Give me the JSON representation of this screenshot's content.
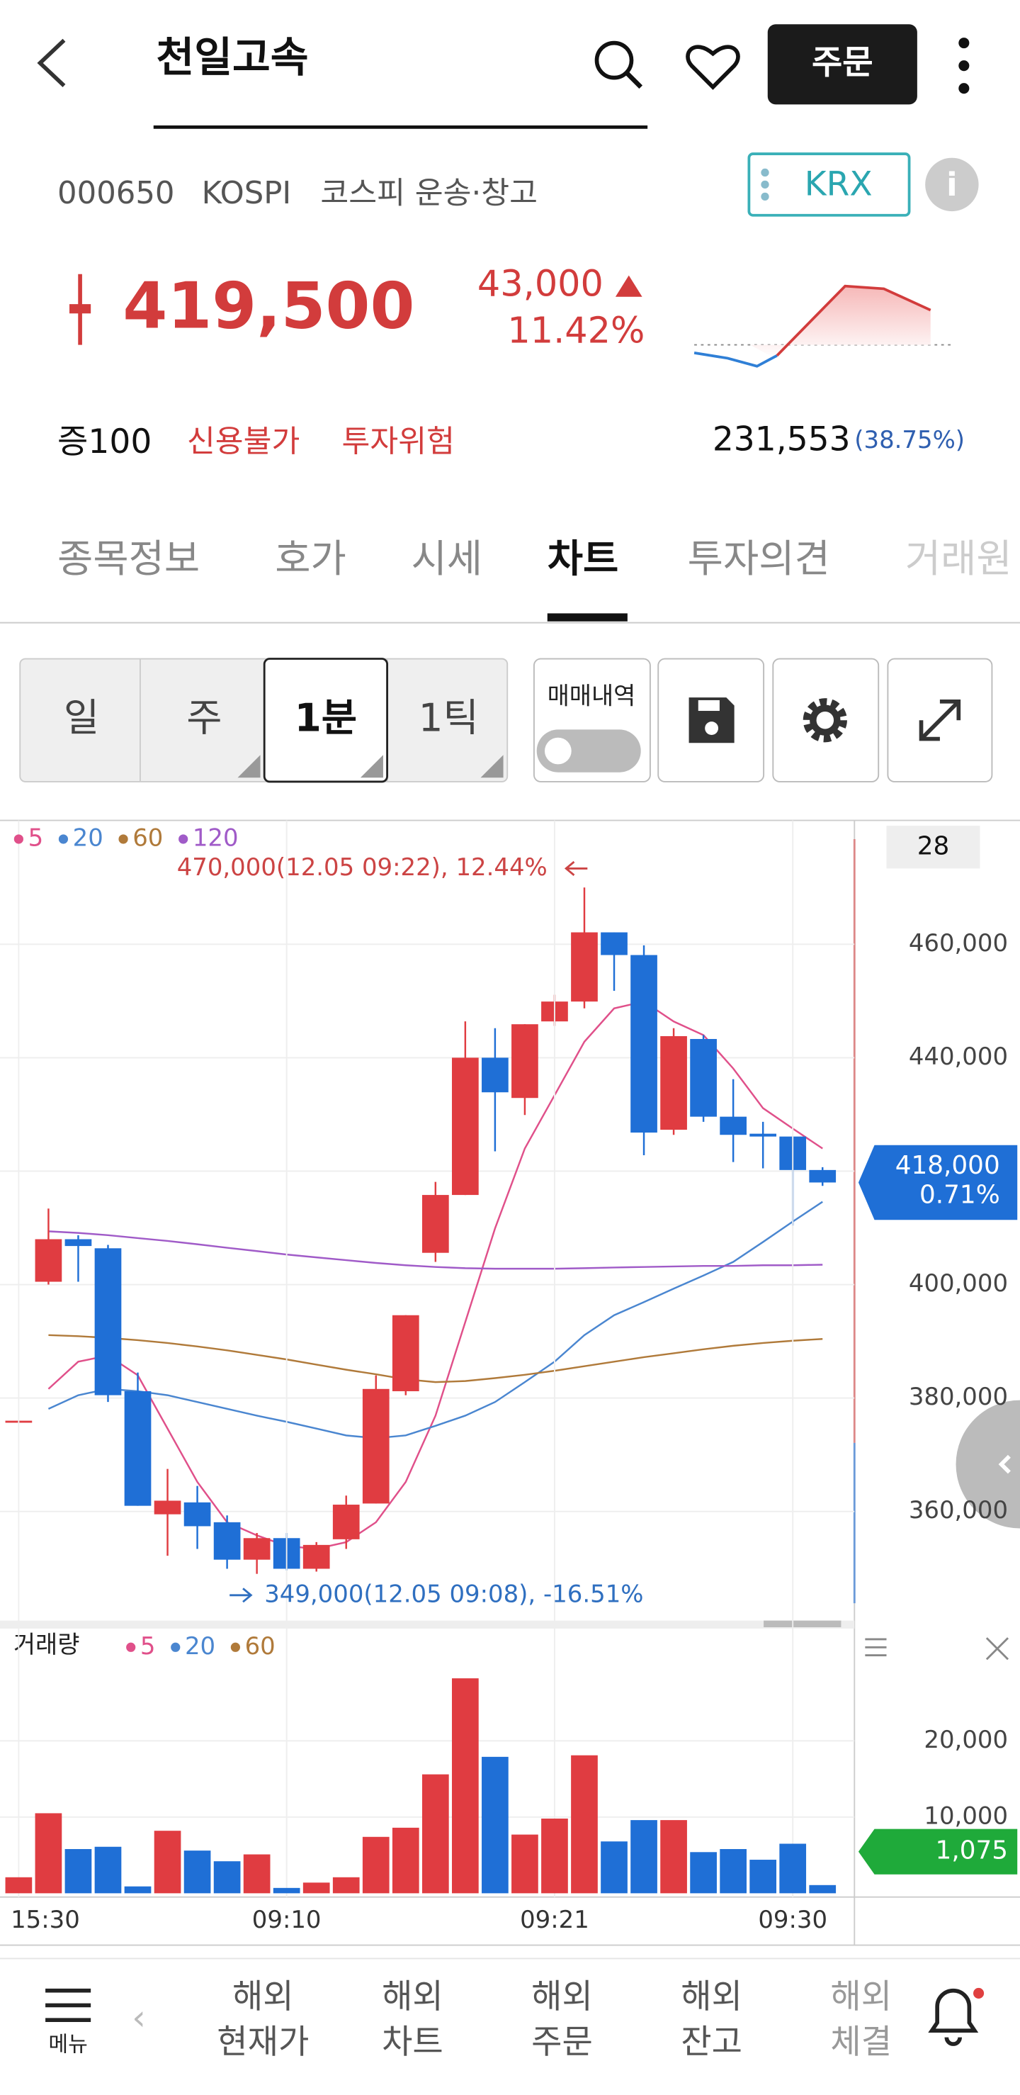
{
  "header": {
    "title": "천일고속",
    "order_button": "주문"
  },
  "stock": {
    "code": "000650",
    "market": "KOSPI",
    "sector": "코스피 운송·창고",
    "exchange": "KRX",
    "price": "419,500",
    "change": "43,000",
    "change_rate": "11.42%",
    "margin": "증100",
    "tags": [
      "신용불가",
      "투자위험"
    ],
    "volume": "231,553",
    "volume_rate": "(38.75%)"
  },
  "tabs": [
    "종목정보",
    "호가",
    "시세",
    "차트",
    "투자의견",
    "거래원"
  ],
  "period_buttons": [
    "일",
    "주",
    "1분",
    "1틱"
  ],
  "trade_history": "매매내역",
  "chart_data": {
    "type": "candlestick",
    "visible_count": 28,
    "categories": [
      "15:30",
      null,
      null,
      null,
      null,
      null,
      null,
      null,
      null,
      "09:10",
      null,
      null,
      null,
      null,
      null,
      null,
      null,
      null,
      "09:21",
      null,
      null,
      null,
      null,
      null,
      null,
      null,
      "09:30",
      null
    ],
    "open": [
      375800,
      400500,
      408000,
      406400,
      381200,
      359500,
      361600,
      358100,
      351500,
      355300,
      349900,
      355100,
      361400,
      381200,
      405600,
      415800,
      440000,
      432900,
      446400,
      449900,
      462100,
      458100,
      427300,
      443300,
      429600,
      426600,
      426100,
      420200
    ],
    "high": [
      376000,
      413400,
      408700,
      407000,
      384500,
      367500,
      364500,
      359300,
      356200,
      356200,
      354600,
      362800,
      384000,
      394600,
      418100,
      446400,
      445200,
      445900,
      451100,
      470000,
      462100,
      459800,
      445200,
      444000,
      436200,
      428700,
      426100,
      420700
    ],
    "low": [
      375800,
      400000,
      400500,
      379300,
      361000,
      352200,
      353400,
      349900,
      349000,
      349600,
      349400,
      353400,
      361400,
      380500,
      404000,
      415800,
      423500,
      429900,
      445600,
      448700,
      451800,
      422800,
      426400,
      428700,
      421600,
      420500,
      410400,
      417400
    ],
    "close": [
      376000,
      408000,
      406800,
      380500,
      361000,
      361900,
      357400,
      351500,
      355300,
      349900,
      354100,
      361200,
      381600,
      394600,
      415800,
      440000,
      433900,
      445900,
      449900,
      462100,
      458100,
      426800,
      443800,
      429600,
      426400,
      426100,
      420200,
      418000
    ],
    "ylim": [
      341000,
      481600
    ],
    "yticks": [
      {
        "value": 360000,
        "label": "360,000"
      },
      {
        "value": 380000,
        "label": "380,000"
      },
      {
        "value": 400000,
        "label": "400,000"
      },
      {
        "value": 420000,
        "label": "420,000"
      },
      {
        "value": 440000,
        "label": "440,000"
      },
      {
        "value": 460000,
        "label": "460,000"
      }
    ],
    "up_color": "#e03c41",
    "down_color": "#1f6fd6",
    "ma_series": [
      {
        "name": "5",
        "color": "#e0508a",
        "values": [
          null,
          381600,
          386400,
          387500,
          384000,
          374600,
          365200,
          358100,
          355800,
          353900,
          353400,
          354600,
          358100,
          365200,
          376900,
          393400,
          409900,
          424000,
          433400,
          442800,
          448700,
          449900,
          446400,
          444000,
          438100,
          431100,
          427500,
          424000
        ]
      },
      {
        "name": "20",
        "color": "#4a86d0",
        "values": [
          null,
          378100,
          380500,
          381600,
          381200,
          380500,
          379300,
          378100,
          376900,
          375800,
          374600,
          373400,
          372900,
          373400,
          375100,
          376900,
          379300,
          382800,
          386400,
          391100,
          394600,
          396900,
          399300,
          401600,
          404000,
          407500,
          411100,
          414600
        ]
      },
      {
        "name": "60",
        "color": "#b07a3a",
        "values": [
          null,
          391100,
          390900,
          390600,
          390200,
          389700,
          389100,
          388400,
          387600,
          386800,
          385900,
          385000,
          384200,
          383300,
          382800,
          383000,
          383500,
          384100,
          384800,
          385600,
          386400,
          387200,
          387900,
          388600,
          389200,
          389700,
          390100,
          390400
        ]
      },
      {
        "name": "120",
        "color": "#a05bc8",
        "values": [
          null,
          409400,
          409100,
          408700,
          408200,
          407700,
          407100,
          406500,
          405900,
          405300,
          404800,
          404300,
          403800,
          403400,
          403100,
          402900,
          402800,
          402800,
          402800,
          402900,
          403000,
          403100,
          403200,
          403300,
          403300,
          403400,
          403400,
          403500
        ]
      }
    ],
    "annotations": [
      {
        "text": "470,000(12.05 09:22), 12.44%"
      },
      {
        "text": "349,000(12.05 09:08), -16.51%"
      }
    ],
    "last_price_label": "418,000",
    "last_change_label": "0.71%",
    "volume": {
      "label": "거래량",
      "values": [
        2100,
        10500,
        5800,
        6100,
        900,
        8200,
        5600,
        4200,
        5100,
        700,
        1400,
        2100,
        7400,
        8600,
        15600,
        28200,
        17900,
        7700,
        9800,
        18100,
        6800,
        9600,
        9600,
        5400,
        5800,
        4400,
        6500,
        1075
      ],
      "value_labels": [
        null,
        null,
        null,
        null,
        null,
        null,
        null,
        null,
        null,
        null,
        null,
        null,
        null,
        null,
        null,
        null,
        null,
        null,
        null,
        null,
        null,
        null,
        null,
        null,
        null,
        null,
        null,
        "1,075"
      ],
      "ylim": [
        -500,
        34200
      ],
      "yticks": [
        {
          "value": 10000,
          "label": "10,000"
        },
        {
          "value": 20000,
          "label": "20,000"
        }
      ],
      "legend": [
        {
          "name": "5",
          "color": "#e0508a"
        },
        {
          "name": "20",
          "color": "#4a86d0"
        },
        {
          "name": "60",
          "color": "#b07a3a"
        }
      ]
    }
  },
  "bottom_nav": {
    "menu": "메뉴",
    "items": [
      [
        "해외",
        "현재가"
      ],
      [
        "해외",
        "차트"
      ],
      [
        "해외",
        "주문"
      ],
      [
        "해외",
        "잔고"
      ],
      [
        "해외",
        "체결"
      ]
    ]
  }
}
